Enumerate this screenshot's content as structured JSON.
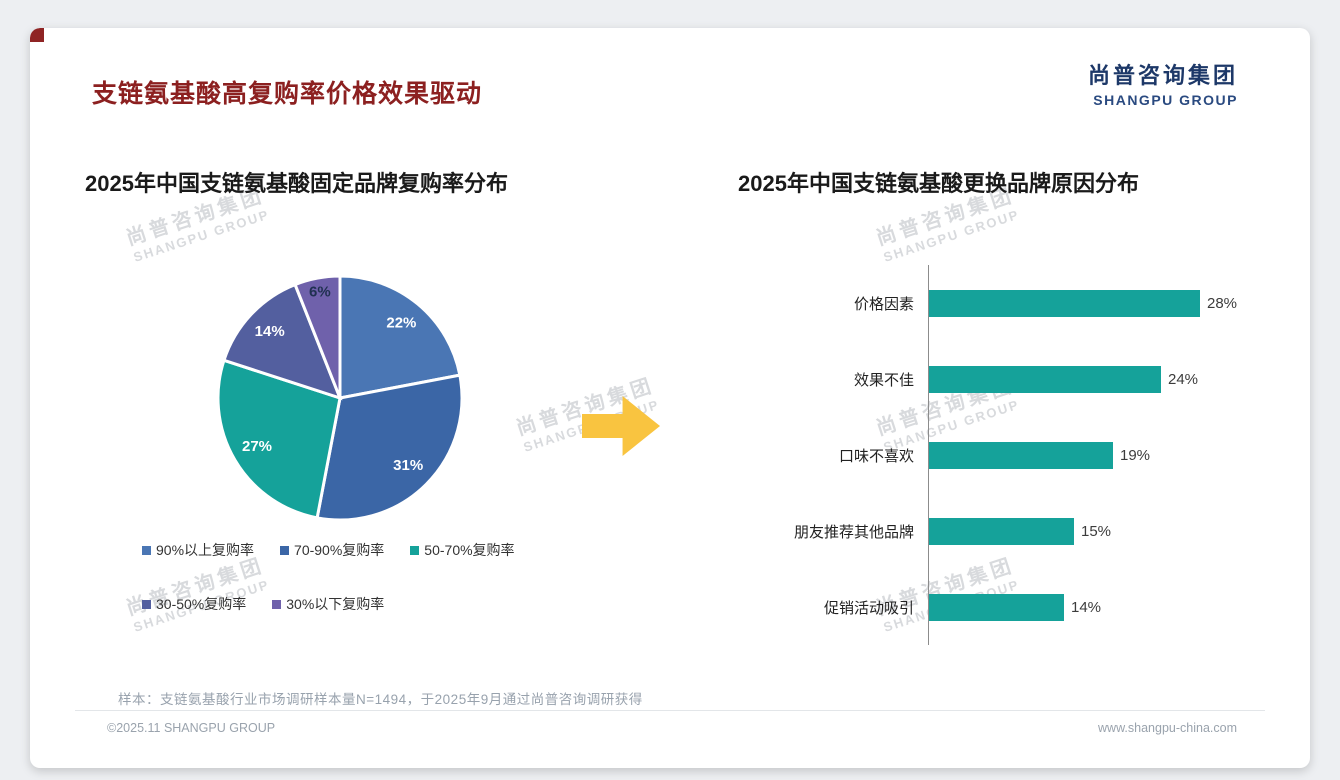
{
  "page": {
    "title": "支链氨基酸高复购率价格效果驱动",
    "logo": {
      "cn": "尚普咨询集团",
      "en": "SHANGPU GROUP"
    },
    "watermark": {
      "cn": "尚普咨询集团",
      "en": "SHANGPU GROUP"
    },
    "note": "样本：支链氨基酸行业市场调研样本量N=1494，于2025年9月通过尚普咨询调研获得",
    "footer": {
      "left": "©2025.11 SHANGPU GROUP",
      "right": "www.shangpu-china.com"
    }
  },
  "chart_data": [
    {
      "type": "pie",
      "title": "2025年中国支链氨基酸固定品牌复购率分布",
      "labels": [
        "90%以上复购率",
        "70-90%复购率",
        "50-70%复购率",
        "30-50%复购率",
        "30%以下复购率"
      ],
      "values": [
        22,
        31,
        27,
        14,
        6
      ],
      "value_suffix": "%",
      "colors": [
        "#4a76b4",
        "#3b66a6",
        "#15a29a",
        "#535f9f",
        "#6f61ab"
      ],
      "start_angle": "top",
      "direction": "clockwise",
      "legend_position": "bottom"
    },
    {
      "type": "bar",
      "title": "2025年中国支链氨基酸更换品牌原因分布",
      "orientation": "horizontal",
      "categories": [
        "价格因素",
        "效果不佳",
        "口味不喜欢",
        "朋友推荐其他品牌",
        "促销活动吸引"
      ],
      "values": [
        28,
        24,
        19,
        15,
        14
      ],
      "value_suffix": "%",
      "bar_color": "#15a29a",
      "xlim": [
        0,
        30
      ],
      "grid": false
    }
  ],
  "theme": {
    "accent_red": "#8c2020",
    "navy": "#1d3868",
    "teal": "#15a29a",
    "arrow_yellow": "#f9c440"
  }
}
